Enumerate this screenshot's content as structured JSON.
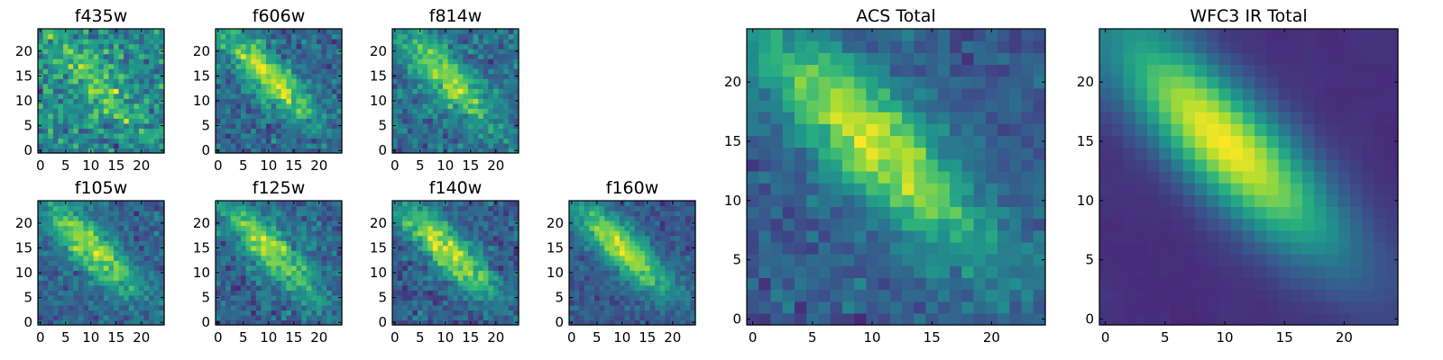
{
  "chart_data": [
    {
      "type": "heatmap",
      "title": "f435w",
      "xlim": [
        0,
        25
      ],
      "ylim": [
        0,
        25
      ],
      "xticks": [
        0,
        5,
        10,
        15,
        20
      ],
      "yticks": [
        0,
        5,
        10,
        15,
        20
      ],
      "colormap": "viridis",
      "band_strength": 0.35,
      "noise": 0.95,
      "seed": 11,
      "panel": 0
    },
    {
      "type": "heatmap",
      "title": "f606w",
      "xlim": [
        0,
        25
      ],
      "ylim": [
        0,
        25
      ],
      "xticks": [
        0,
        5,
        10,
        15,
        20
      ],
      "yticks": [
        0,
        5,
        10,
        15,
        20
      ],
      "colormap": "viridis",
      "band_strength": 0.75,
      "noise": 0.8,
      "seed": 23,
      "panel": 1
    },
    {
      "type": "heatmap",
      "title": "f814w",
      "xlim": [
        0,
        25
      ],
      "ylim": [
        0,
        25
      ],
      "xticks": [
        0,
        5,
        10,
        15,
        20
      ],
      "yticks": [
        0,
        5,
        10,
        15,
        20
      ],
      "colormap": "viridis",
      "band_strength": 0.7,
      "noise": 0.85,
      "seed": 37,
      "panel": 2
    },
    {
      "type": "heatmap",
      "title": "f105w",
      "xlim": [
        0,
        25
      ],
      "ylim": [
        0,
        25
      ],
      "xticks": [
        0,
        5,
        10,
        15,
        20
      ],
      "yticks": [
        0,
        5,
        10,
        15,
        20
      ],
      "colormap": "viridis",
      "band_strength": 0.65,
      "noise": 0.6,
      "seed": 41,
      "panel": 3
    },
    {
      "type": "heatmap",
      "title": "f125w",
      "xlim": [
        0,
        25
      ],
      "ylim": [
        0,
        25
      ],
      "xticks": [
        0,
        5,
        10,
        15,
        20
      ],
      "yticks": [
        0,
        5,
        10,
        15,
        20
      ],
      "colormap": "viridis",
      "band_strength": 0.6,
      "noise": 0.65,
      "seed": 53,
      "panel": 4
    },
    {
      "type": "heatmap",
      "title": "f140w",
      "xlim": [
        0,
        25
      ],
      "ylim": [
        0,
        25
      ],
      "xticks": [
        0,
        5,
        10,
        15,
        20
      ],
      "yticks": [
        0,
        5,
        10,
        15,
        20
      ],
      "colormap": "viridis",
      "band_strength": 0.7,
      "noise": 0.6,
      "seed": 67,
      "panel": 5
    },
    {
      "type": "heatmap",
      "title": "f160w",
      "xlim": [
        0,
        25
      ],
      "ylim": [
        0,
        25
      ],
      "xticks": [
        0,
        5,
        10,
        15,
        20
      ],
      "yticks": [
        0,
        5,
        10,
        15,
        20
      ],
      "colormap": "viridis",
      "band_strength": 0.75,
      "noise": 0.5,
      "seed": 79,
      "panel": 6
    },
    {
      "type": "heatmap",
      "title": "ACS Total",
      "xlim": [
        0,
        25
      ],
      "ylim": [
        0,
        25
      ],
      "xticks": [
        0,
        5,
        10,
        15,
        20
      ],
      "yticks": [
        0,
        5,
        10,
        15,
        20
      ],
      "colormap": "viridis",
      "band_strength": 0.85,
      "noise": 0.55,
      "seed": 97,
      "panel": 7
    },
    {
      "type": "heatmap",
      "title": "WFC3 IR Total",
      "xlim": [
        0,
        25
      ],
      "ylim": [
        0,
        25
      ],
      "xticks": [
        0,
        5,
        10,
        15,
        20
      ],
      "yticks": [
        0,
        5,
        10,
        15,
        20
      ],
      "colormap": "viridis",
      "band_strength": 1.0,
      "noise": 0.15,
      "seed": 113,
      "panel": 8
    }
  ]
}
